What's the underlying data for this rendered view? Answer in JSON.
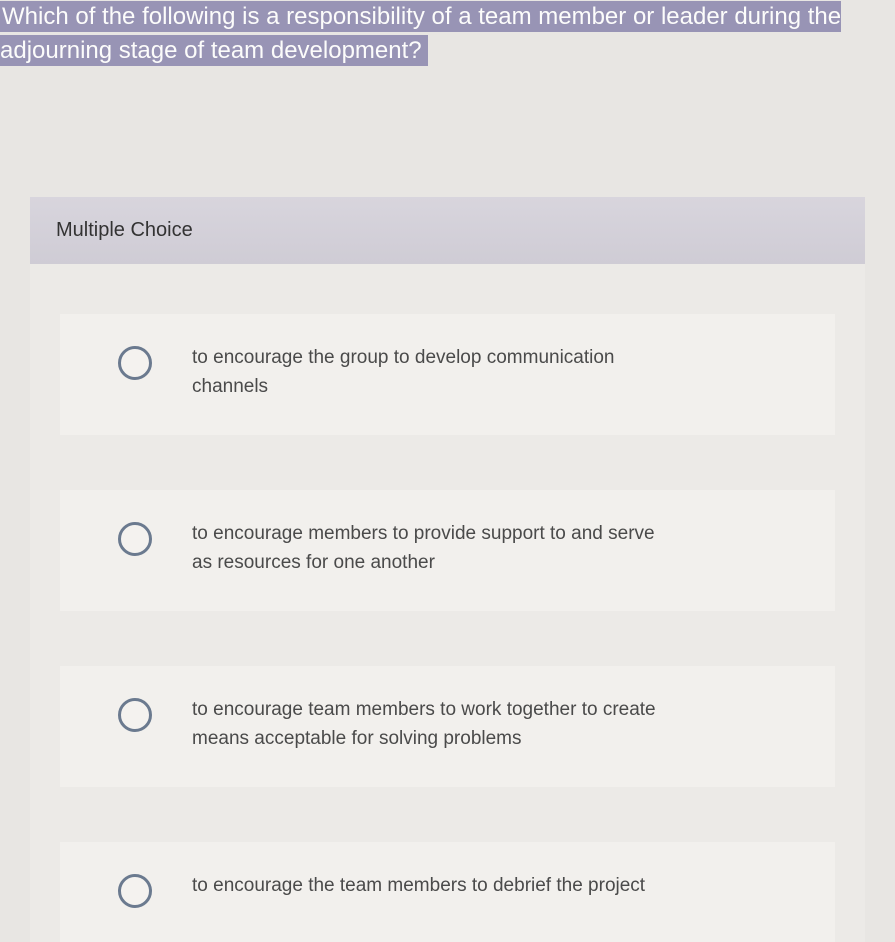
{
  "question": {
    "text": "Which of the following is a responsibility of a team member or leader during the adjourning stage of team development?",
    "highlight_bg": "#9894b5",
    "highlight_text_color": "#fcfcfb",
    "fontsize": 24
  },
  "section_label": "Multiple Choice",
  "section_label_bg": "#d4d1da",
  "options": [
    {
      "text": "to encourage the group to develop communication channels"
    },
    {
      "text": "to encourage members to provide support to and serve as resources for one another"
    },
    {
      "text": "to encourage team members to work together to create means acceptable for solving problems"
    },
    {
      "text": "to encourage the team members to debrief the project"
    }
  ],
  "radio_border_color": "#6b7a8f",
  "page_bg": "#e8e6e3",
  "option_card_bg": "#f2f0ed",
  "option_text_color": "#4a4a4a"
}
